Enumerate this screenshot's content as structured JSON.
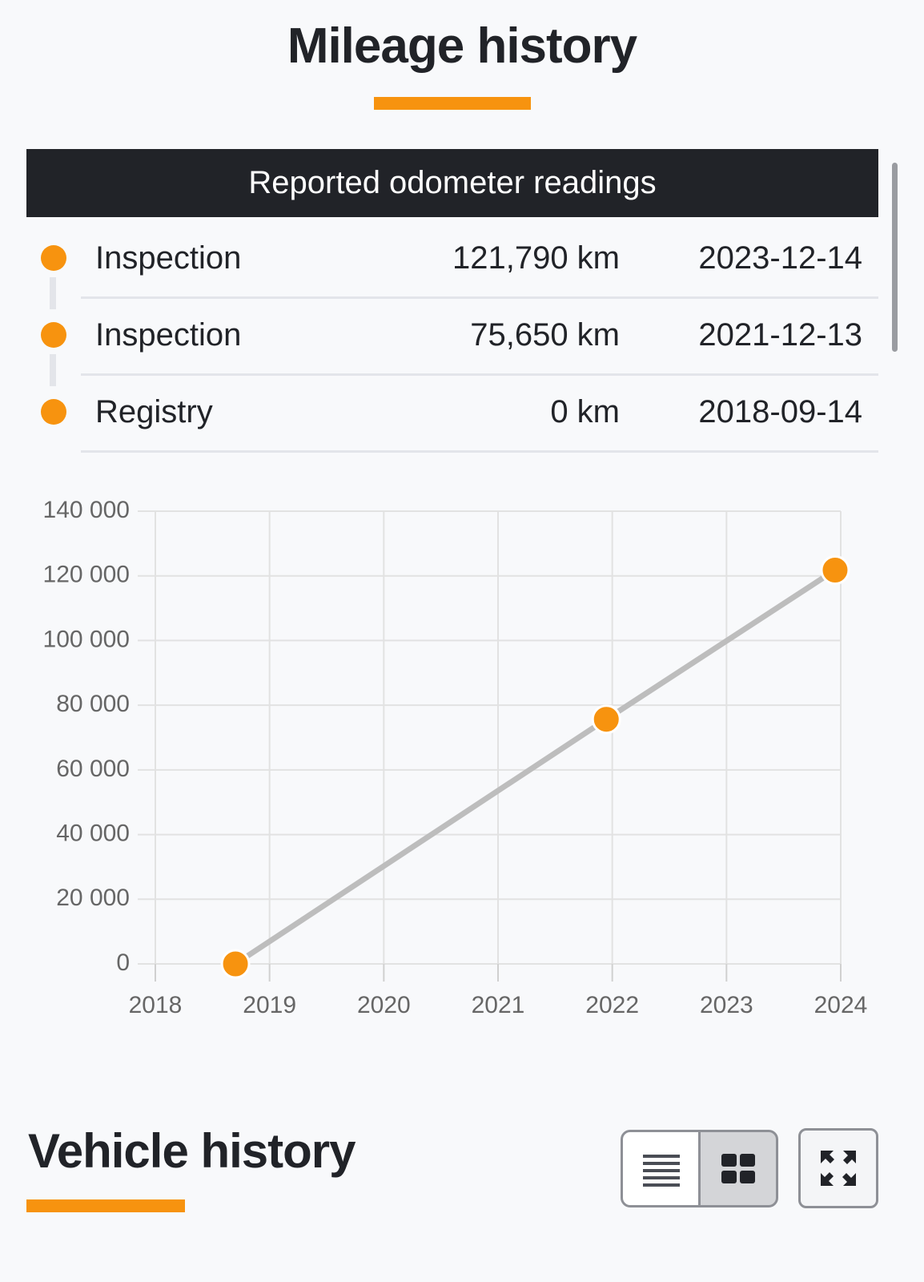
{
  "header": {
    "title": "Mileage history"
  },
  "table": {
    "title": "Reported odometer readings",
    "rows": [
      [
        "Inspection",
        "121,790 km",
        "2023-12-14"
      ],
      [
        "Inspection",
        "75,650 km",
        "2021-12-13"
      ],
      [
        "Registry",
        "0 km",
        "2018-09-14"
      ]
    ]
  },
  "chart_data": {
    "type": "line",
    "x": [
      "2023-12-14",
      "2021-12-13",
      "2018-09-14"
    ],
    "values": [
      121790,
      75650,
      0
    ],
    "color": "#f7930f",
    "line_color": "#bdbdbd",
    "xlim": [
      2018,
      2024
    ],
    "xticks": [
      2018,
      2019,
      2020,
      2021,
      2022,
      2023,
      2024
    ],
    "ylim": [
      0,
      140000
    ],
    "yticks": [
      0,
      {
        "value": 20000,
        "label": "20 000"
      },
      {
        "value": 40000,
        "label": "40 000"
      },
      {
        "value": 60000,
        "label": "60 000"
      },
      {
        "value": 80000,
        "label": "80 000"
      },
      {
        "value": 100000,
        "label": "100 000"
      },
      {
        "value": 120000,
        "label": "120 000"
      },
      {
        "value": 140000,
        "label": "140 000"
      }
    ],
    "grid": true
  },
  "section": {
    "title": "Vehicle history"
  }
}
